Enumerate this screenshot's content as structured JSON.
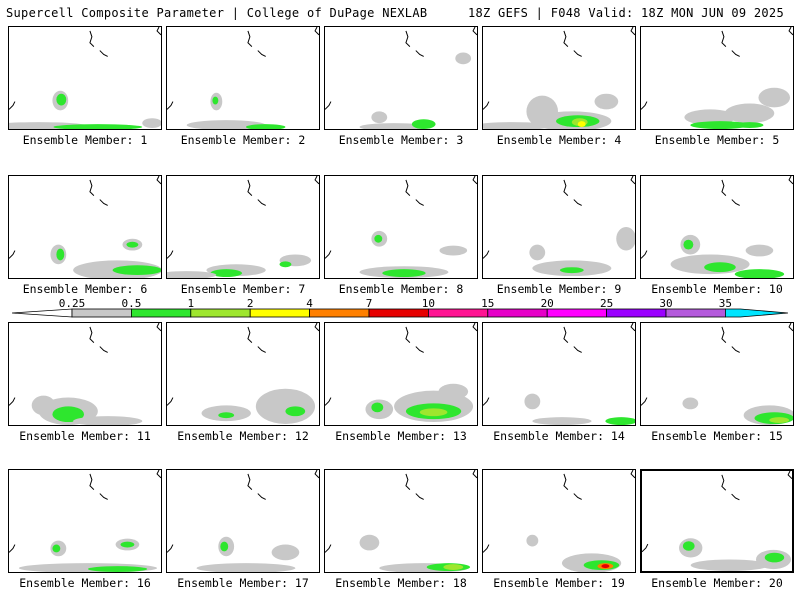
{
  "header": {
    "left": "Supercell Composite Parameter | College of DuPage NEXLAB",
    "right": "18Z GEFS | F048 Valid: 18Z MON JUN 09 2025"
  },
  "colorbar": {
    "ticks": [
      "0.25",
      "0.5",
      "1",
      "2",
      "4",
      "7",
      "10",
      "15",
      "20",
      "25",
      "30",
      "35"
    ],
    "colors": [
      "#c8c8c8",
      "#2ee62e",
      "#9ee62e",
      "#ffff00",
      "#ff8000",
      "#e60000",
      "#ff1493",
      "#e600c8",
      "#ff00ff",
      "#9b00ff",
      "#b45adc",
      "#00e5ff"
    ]
  },
  "map_colors": {
    "marginal": "#c8c8c8",
    "low": "#2ee62e",
    "mid": "#9ee62e",
    "high": "#ffff00",
    "extreme": "#ff8000",
    "severe": "#e60000"
  },
  "members": [
    {
      "label": "Ensemble Member: 1"
    },
    {
      "label": "Ensemble Member: 2"
    },
    {
      "label": "Ensemble Member: 3"
    },
    {
      "label": "Ensemble Member: 4"
    },
    {
      "label": "Ensemble Member: 5"
    },
    {
      "label": "Ensemble Member: 6"
    },
    {
      "label": "Ensemble Member: 7"
    },
    {
      "label": "Ensemble Member: 8"
    },
    {
      "label": "Ensemble Member: 9"
    },
    {
      "label": "Ensemble Member: 10"
    },
    {
      "label": "Ensemble Member: 11"
    },
    {
      "label": "Ensemble Member: 12"
    },
    {
      "label": "Ensemble Member: 13"
    },
    {
      "label": "Ensemble Member: 14"
    },
    {
      "label": "Ensemble Member: 15"
    },
    {
      "label": "Ensemble Member: 16"
    },
    {
      "label": "Ensemble Member: 17"
    },
    {
      "label": "Ensemble Member: 18"
    },
    {
      "label": "Ensemble Member: 19"
    },
    {
      "label": "Ensemble Member: 20"
    }
  ]
}
